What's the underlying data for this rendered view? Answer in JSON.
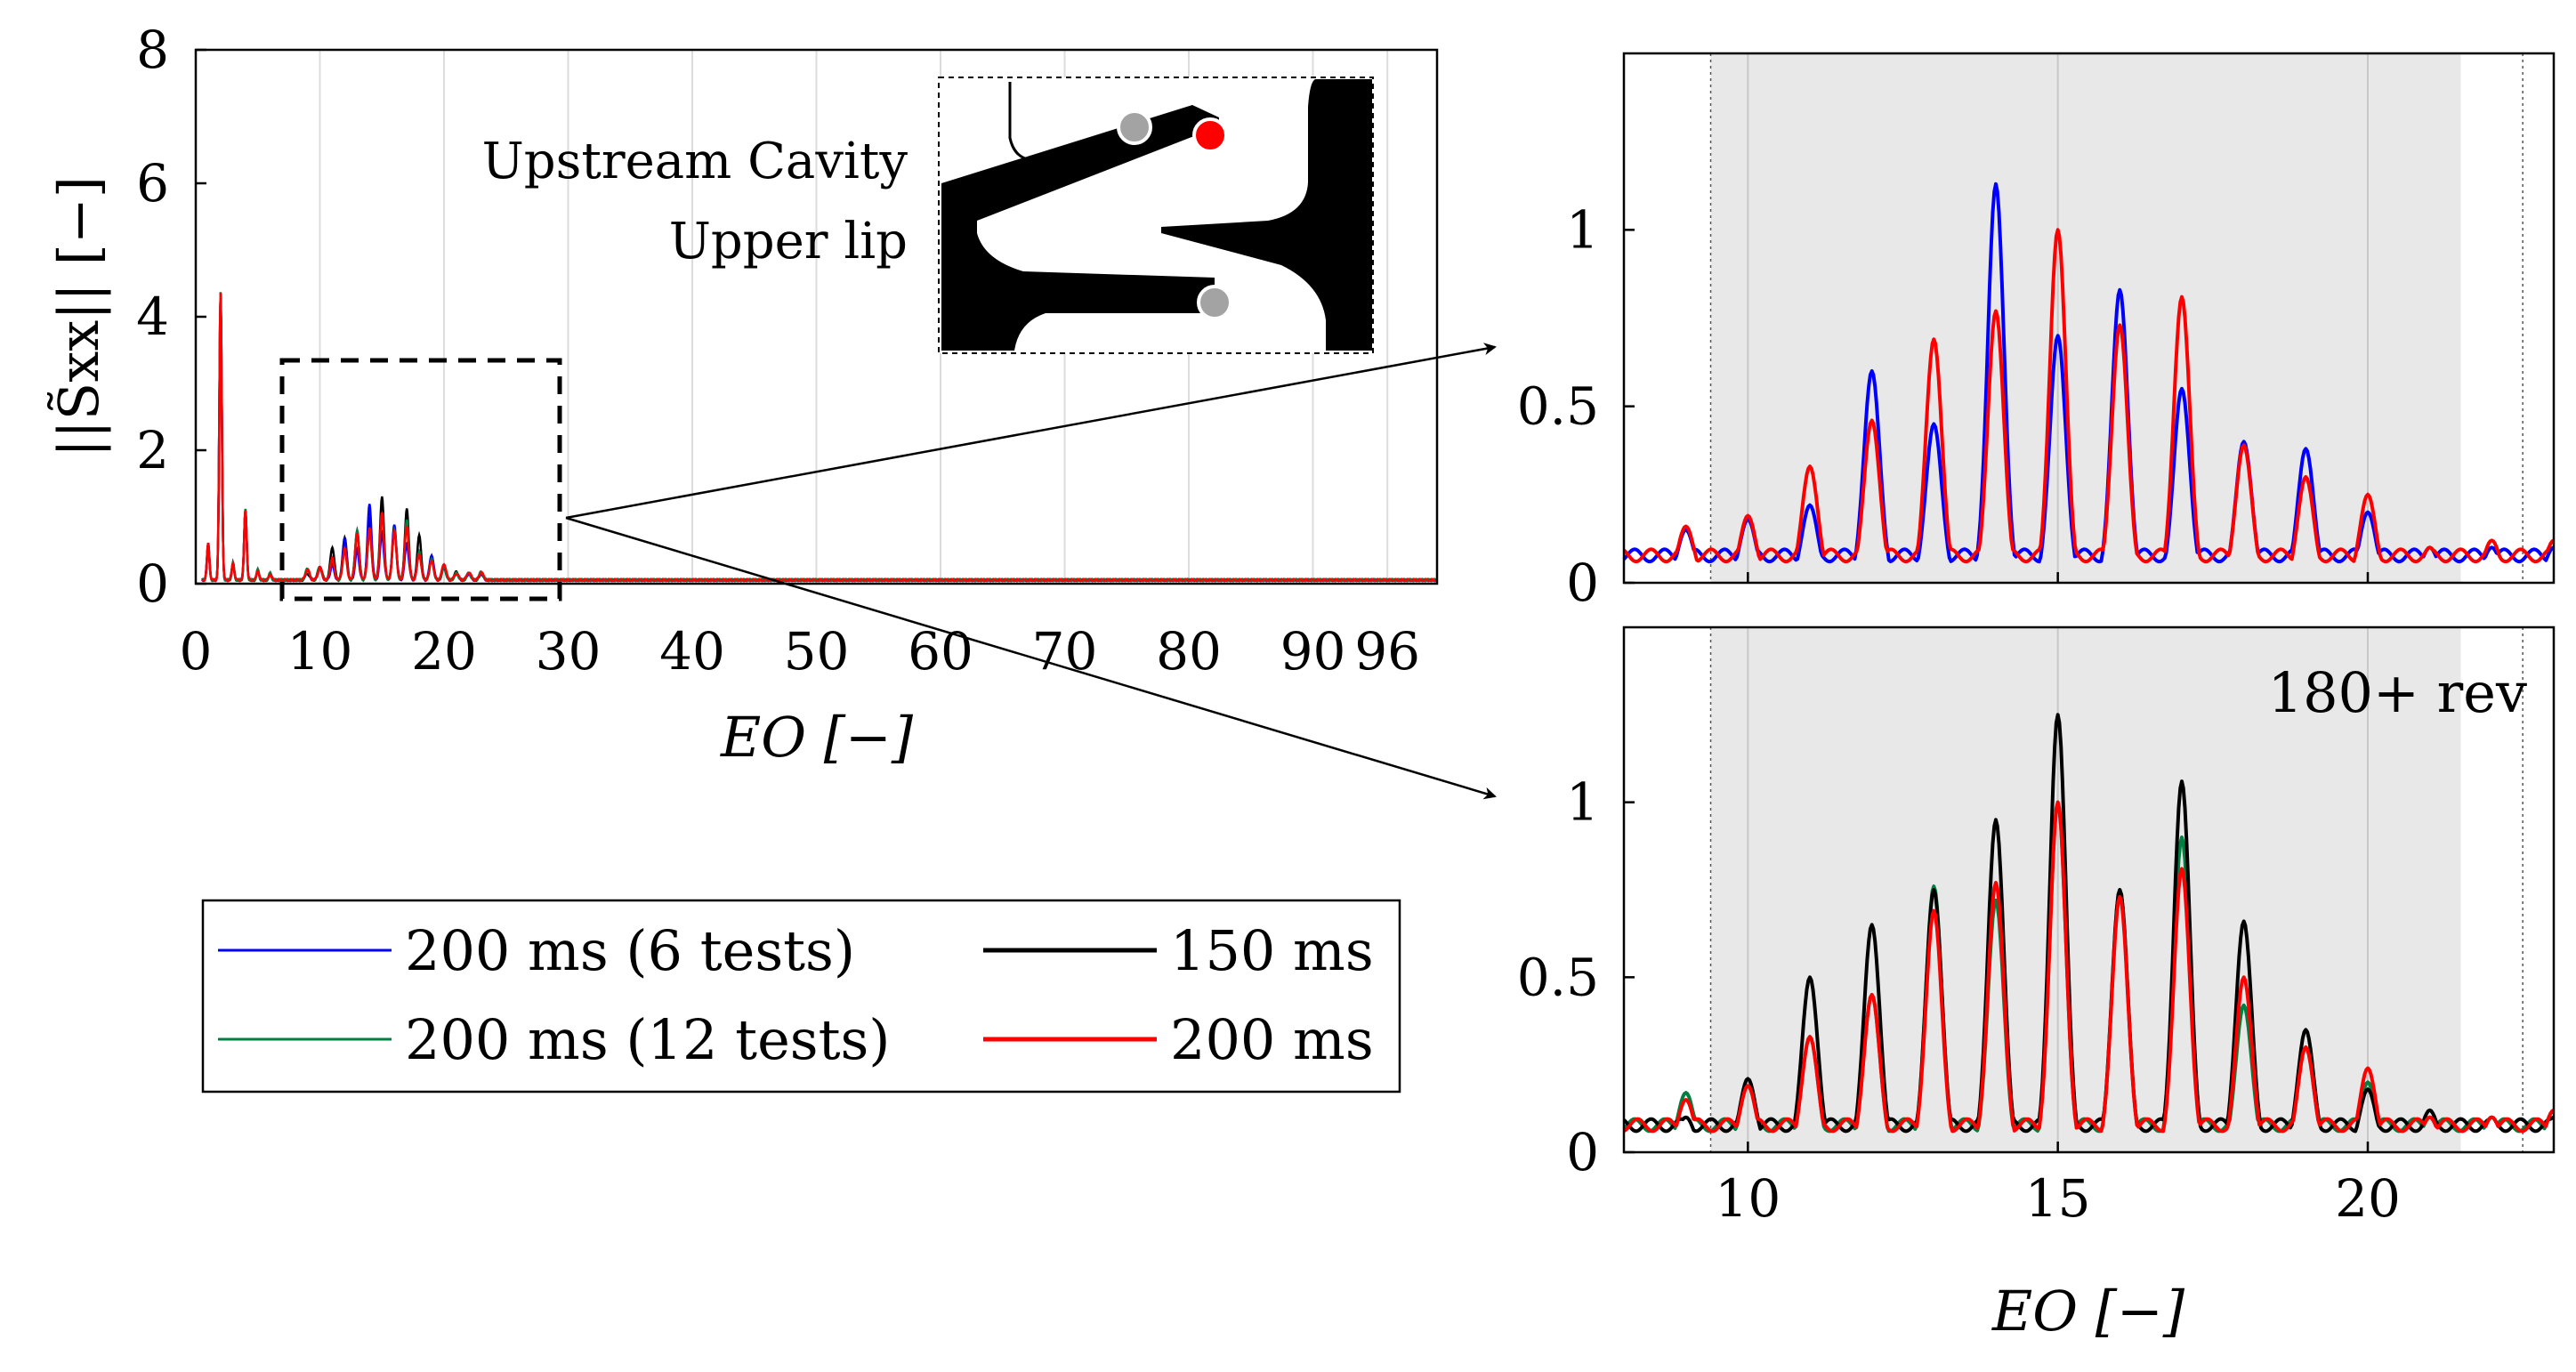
{
  "chart_data": [
    {
      "type": "line",
      "id": "overview",
      "xlabel": "EO [−]",
      "ylabel": "||S̃xx|| [−]",
      "xlim": [
        0,
        100
      ],
      "ylim": [
        0,
        8
      ],
      "xticks": [
        0,
        10,
        20,
        30,
        40,
        50,
        60,
        70,
        80,
        90,
        96
      ],
      "xtick_labels": [
        "0",
        "10",
        "20",
        "30",
        "40",
        "50",
        "60",
        "70",
        "80",
        "90",
        "96"
      ],
      "yticks": [
        0,
        2,
        4,
        6,
        8
      ],
      "ytick_labels": [
        "0",
        "2",
        "4",
        "6",
        "8"
      ],
      "grid": "x",
      "low_peaks": [
        [
          1,
          0.55
        ],
        [
          2,
          4.3
        ],
        [
          3,
          0.25
        ],
        [
          4,
          1.05
        ],
        [
          5,
          0.15
        ],
        [
          6,
          0.1
        ]
      ],
      "inset": {
        "title_line1": "Upstream Cavity",
        "title_line2": "Upper lip",
        "sensor_colors": [
          "#a3a3a3",
          "#ff0000",
          "#a3a3a3"
        ]
      },
      "zoom_box": {
        "x": [
          7,
          29
        ],
        "y": [
          0,
          3.35
        ]
      }
    },
    {
      "type": "line",
      "id": "zoom-top",
      "xlim": [
        8,
        23
      ],
      "ylim": [
        0,
        1.5
      ],
      "yticks": [
        0,
        0.5,
        1
      ],
      "ytick_labels": [
        "0",
        "0.5",
        "1"
      ],
      "xticks": [
        10,
        15,
        20
      ],
      "shaded_x": [
        9.4,
        21.5
      ],
      "dotted_x": [
        9.4,
        22.5
      ],
      "series": [
        {
          "color": "#0000ff",
          "peaks": [
            [
              9,
              0.15
            ],
            [
              10,
              0.18
            ],
            [
              11,
              0.22
            ],
            [
              12,
              0.6
            ],
            [
              13,
              0.45
            ],
            [
              14,
              1.13
            ],
            [
              15,
              0.7
            ],
            [
              16,
              0.83
            ],
            [
              17,
              0.55
            ],
            [
              18,
              0.4
            ],
            [
              19,
              0.38
            ],
            [
              20,
              0.2
            ],
            [
              21,
              0.1
            ],
            [
              22,
              0.1
            ],
            [
              23,
              0.1
            ]
          ]
        },
        {
          "color": "#ff0000",
          "peaks": [
            [
              9,
              0.16
            ],
            [
              10,
              0.19
            ],
            [
              11,
              0.33
            ],
            [
              12,
              0.46
            ],
            [
              13,
              0.69
            ],
            [
              14,
              0.77
            ],
            [
              15,
              1.0
            ],
            [
              16,
              0.73
            ],
            [
              17,
              0.81
            ],
            [
              18,
              0.39
            ],
            [
              19,
              0.3
            ],
            [
              20,
              0.25
            ],
            [
              21,
              0.1
            ],
            [
              22,
              0.12
            ],
            [
              23,
              0.12
            ]
          ]
        }
      ]
    },
    {
      "type": "line",
      "id": "zoom-bottom",
      "xlabel": "EO [−]",
      "annotation": "180+ rev",
      "xlim": [
        8,
        23
      ],
      "ylim": [
        0,
        1.5
      ],
      "yticks": [
        0,
        0.5,
        1
      ],
      "ytick_labels": [
        "0",
        "0.5",
        "1"
      ],
      "xticks": [
        10,
        15,
        20
      ],
      "xtick_labels": [
        "10",
        "15",
        "20"
      ],
      "shaded_x": [
        9.4,
        21.5
      ],
      "dotted_x": [
        9.4,
        22.5
      ],
      "series": [
        {
          "color": "#008040",
          "peaks": [
            [
              9,
              0.17
            ],
            [
              10,
              0.19
            ],
            [
              11,
              0.33
            ],
            [
              12,
              0.45
            ],
            [
              13,
              0.76
            ],
            [
              14,
              0.72
            ],
            [
              15,
              1.0
            ],
            [
              16,
              0.75
            ],
            [
              17,
              0.9
            ],
            [
              18,
              0.42
            ],
            [
              19,
              0.3
            ],
            [
              20,
              0.2
            ],
            [
              21,
              0.1
            ],
            [
              22,
              0.1
            ],
            [
              23,
              0.12
            ]
          ]
        },
        {
          "color": "#000000",
          "peaks": [
            [
              9,
              0.1
            ],
            [
              10,
              0.21
            ],
            [
              11,
              0.5
            ],
            [
              12,
              0.65
            ],
            [
              13,
              0.75
            ],
            [
              14,
              0.95
            ],
            [
              15,
              1.25
            ],
            [
              16,
              0.75
            ],
            [
              17,
              1.06
            ],
            [
              18,
              0.66
            ],
            [
              19,
              0.35
            ],
            [
              20,
              0.18
            ],
            [
              21,
              0.12
            ],
            [
              22,
              0.1
            ],
            [
              23,
              0.1
            ]
          ]
        },
        {
          "color": "#ff0000",
          "peaks": [
            [
              9,
              0.15
            ],
            [
              10,
              0.19
            ],
            [
              11,
              0.33
            ],
            [
              12,
              0.45
            ],
            [
              13,
              0.69
            ],
            [
              14,
              0.77
            ],
            [
              15,
              1.0
            ],
            [
              16,
              0.73
            ],
            [
              17,
              0.81
            ],
            [
              18,
              0.5
            ],
            [
              19,
              0.3
            ],
            [
              20,
              0.24
            ],
            [
              21,
              0.1
            ],
            [
              22,
              0.1
            ],
            [
              23,
              0.12
            ]
          ]
        }
      ]
    }
  ],
  "legend": {
    "placement": "bottom-left",
    "entries": [
      {
        "label": "200 ms (6 tests)",
        "color": "#0000ff"
      },
      {
        "label": "150 ms",
        "color": "#000000"
      },
      {
        "label": "200 ms (12 tests)",
        "color": "#008040"
      },
      {
        "label": "200 ms",
        "color": "#ff0000"
      }
    ]
  }
}
